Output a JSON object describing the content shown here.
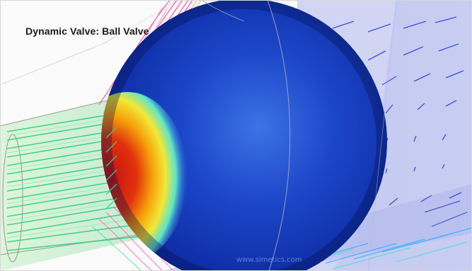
{
  "title": "Dynamic Valve: Ball Valve",
  "watermark": "www.simetics.com"
}
